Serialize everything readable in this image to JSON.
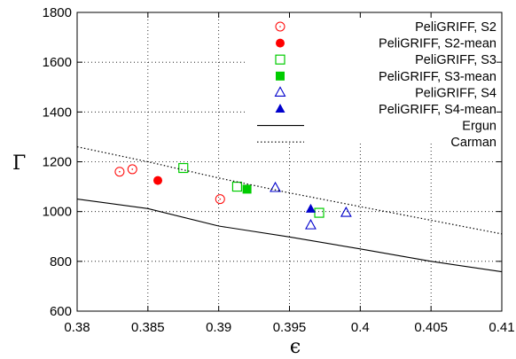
{
  "chart_data": {
    "type": "scatter",
    "xlabel": "ϵ",
    "ylabel": "Γ",
    "xlim": [
      0.38,
      0.41
    ],
    "ylim": [
      600,
      1800
    ],
    "xticks": [
      0.38,
      0.385,
      0.39,
      0.395,
      0.4,
      0.405,
      0.41
    ],
    "xtick_labels": [
      "0.38",
      "0.385",
      "0.39",
      "0.395",
      "0.4",
      "0.405",
      "0.41"
    ],
    "yticks": [
      600,
      800,
      1000,
      1200,
      1400,
      1600,
      1800
    ],
    "ytick_labels": [
      "600",
      "800",
      "1000",
      "1200",
      "1400",
      "1600",
      "1800"
    ],
    "grid": "dotted",
    "legend_position": "top-right",
    "series": [
      {
        "name": "PeliGRIFF, S2",
        "marker": "open-circle",
        "color": "#ff0000",
        "points": [
          [
            0.383,
            1160
          ],
          [
            0.3839,
            1170
          ],
          [
            0.3901,
            1050
          ]
        ]
      },
      {
        "name": "PeliGRIFF, S2-mean",
        "marker": "filled-circle",
        "color": "#ff0000",
        "points": [
          [
            0.3857,
            1125
          ]
        ]
      },
      {
        "name": "PeliGRIFF, S3",
        "marker": "open-square",
        "color": "#00cc00",
        "points": [
          [
            0.3875,
            1175
          ],
          [
            0.3913,
            1100
          ],
          [
            0.3971,
            995
          ]
        ]
      },
      {
        "name": "PeliGRIFF, S3-mean",
        "marker": "filled-square",
        "color": "#00cc00",
        "points": [
          [
            0.392,
            1090
          ]
        ]
      },
      {
        "name": "PeliGRIFF, S4",
        "marker": "open-triangle",
        "color": "#0000cc",
        "points": [
          [
            0.394,
            1095
          ],
          [
            0.3965,
            945
          ],
          [
            0.399,
            995
          ]
        ]
      },
      {
        "name": "PeliGRIFF, S4-mean",
        "marker": "filled-triangle",
        "color": "#0000cc",
        "points": [
          [
            0.3965,
            1010
          ]
        ]
      },
      {
        "name": "Ergun",
        "marker": "solid-line",
        "color": "#000000",
        "points": [
          [
            0.38,
            1050
          ],
          [
            0.385,
            1012
          ],
          [
            0.39,
            942
          ],
          [
            0.395,
            898
          ],
          [
            0.4,
            850
          ],
          [
            0.405,
            800
          ],
          [
            0.41,
            758
          ]
        ]
      },
      {
        "name": "Carman",
        "marker": "dotted-line",
        "color": "#000000",
        "points": [
          [
            0.38,
            1260
          ],
          [
            0.385,
            1200
          ],
          [
            0.39,
            1135
          ],
          [
            0.395,
            1075
          ],
          [
            0.4,
            1020
          ],
          [
            0.405,
            965
          ],
          [
            0.41,
            910
          ]
        ]
      }
    ]
  }
}
